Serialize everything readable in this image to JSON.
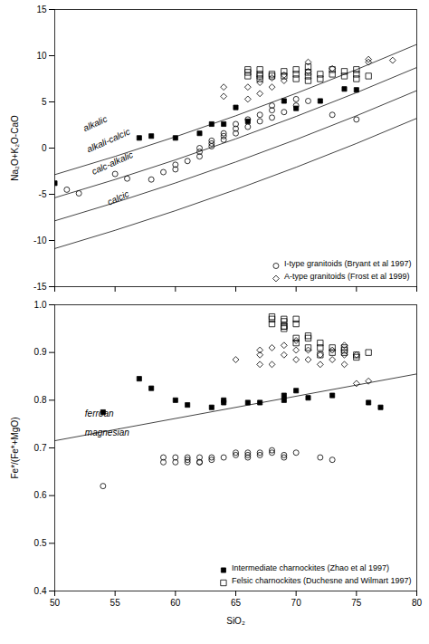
{
  "chart_data": [
    {
      "type": "scatter",
      "ylabel": "Na₂O+K₂O-CaO",
      "xlim": [
        50,
        80
      ],
      "ylim": [
        -15,
        15
      ],
      "xticks": [
        50,
        55,
        60,
        65,
        70,
        75,
        80
      ],
      "yticks": [
        -15,
        -10,
        -5,
        0,
        5,
        10,
        15
      ],
      "tick_labels": "y",
      "grid": false,
      "legend": "lower right",
      "series": [
        {
          "type": "line",
          "color": "#444444",
          "values": [
            [
              50,
              -2.875
            ],
            [
              55,
              -0.9
            ],
            [
              60,
              1.225
            ],
            [
              65,
              3.5
            ],
            [
              70,
              5.925
            ],
            [
              75,
              8.5
            ],
            [
              80,
              11.225
            ]
          ]
        },
        {
          "type": "line",
          "color": "#444444",
          "values": [
            [
              50,
              -5.375
            ],
            [
              55,
              -3.4
            ],
            [
              60,
              -1.275
            ],
            [
              65,
              1.0
            ],
            [
              70,
              3.425
            ],
            [
              75,
              6.0
            ],
            [
              80,
              8.725
            ]
          ]
        },
        {
          "type": "line",
          "color": "#444444",
          "values": [
            [
              50,
              -7.875
            ],
            [
              55,
              -5.9
            ],
            [
              60,
              -3.775
            ],
            [
              65,
              -1.5
            ],
            [
              70,
              0.925
            ],
            [
              75,
              3.5
            ],
            [
              80,
              6.225
            ]
          ]
        },
        {
          "type": "line",
          "color": "#444444",
          "values": [
            [
              50,
              -10.875
            ],
            [
              55,
              -8.9
            ],
            [
              60,
              -6.775
            ],
            [
              65,
              -4.5
            ],
            [
              70,
              -2.075
            ],
            [
              75,
              0.5
            ],
            [
              80,
              3.225
            ]
          ]
        },
        {
          "type": "scatter",
          "name": "I-type granitoids (Bryant et al 1997)",
          "marker": "circle-open",
          "color": "#000000",
          "values": [
            [
              51,
              -4.5
            ],
            [
              52,
              -4.9
            ],
            [
              55,
              -2.8
            ],
            [
              56,
              -3.3
            ],
            [
              58,
              -3.4
            ],
            [
              59,
              -2.6
            ],
            [
              60,
              -1.8
            ],
            [
              60,
              -2.3
            ],
            [
              61,
              -1.4
            ],
            [
              62,
              -0.9
            ],
            [
              62,
              -0.4
            ],
            [
              62,
              0.0
            ],
            [
              63,
              0.5
            ],
            [
              63,
              0.2
            ],
            [
              63,
              0.8
            ],
            [
              64,
              1.3
            ],
            [
              64,
              1.6
            ],
            [
              64,
              0.9
            ],
            [
              65,
              2.1
            ],
            [
              65,
              1.6
            ],
            [
              65,
              2.6
            ],
            [
              66,
              2.3
            ],
            [
              66,
              3.1
            ],
            [
              67,
              2.9
            ],
            [
              67,
              3.6
            ],
            [
              68,
              3.3
            ],
            [
              68,
              4.1
            ],
            [
              68,
              4.6
            ],
            [
              69,
              3.9
            ],
            [
              70,
              5.3
            ],
            [
              70,
              4.6
            ],
            [
              71,
              5.1
            ],
            [
              73,
              3.6
            ],
            [
              75,
              3.1
            ]
          ]
        },
        {
          "type": "scatter",
          "name": "A-type granitoids (Frost et al 1999)",
          "marker": "diamond-open",
          "color": "#000000",
          "values": [
            [
              64,
              5.6
            ],
            [
              64,
              6.6
            ],
            [
              66,
              5.3
            ],
            [
              66,
              6.6
            ],
            [
              67,
              5.9
            ],
            [
              67,
              7.1
            ],
            [
              68,
              6.6
            ],
            [
              68,
              7.6
            ],
            [
              69,
              7.3
            ],
            [
              69,
              7.9
            ],
            [
              71,
              8.3
            ],
            [
              71,
              9.3
            ],
            [
              73,
              8.6
            ],
            [
              76,
              9.3
            ],
            [
              76,
              9.6
            ],
            [
              78,
              9.5
            ]
          ]
        },
        {
          "type": "scatter",
          "marker": "square-filled",
          "color": "#000000",
          "values": [
            [
              50,
              -3.8
            ],
            [
              57,
              1.1
            ],
            [
              58,
              1.3
            ],
            [
              60,
              1.1
            ],
            [
              62,
              1.6
            ],
            [
              63,
              2.6
            ],
            [
              64,
              2.6
            ],
            [
              65,
              4.4
            ],
            [
              66,
              2.9
            ],
            [
              69,
              5.1
            ],
            [
              70,
              4.3
            ],
            [
              72,
              5.1
            ],
            [
              74,
              6.4
            ],
            [
              75,
              6.3
            ]
          ]
        },
        {
          "type": "scatter",
          "marker": "square-open",
          "color": "#000000",
          "values": [
            [
              66,
              7.8
            ],
            [
              66,
              8.2
            ],
            [
              66,
              8.5
            ],
            [
              67,
              7.5
            ],
            [
              67,
              8.0
            ],
            [
              67,
              8.5
            ],
            [
              67,
              7.8
            ],
            [
              68,
              7.8
            ],
            [
              68,
              8.0
            ],
            [
              69,
              7.8
            ],
            [
              69,
              8.3
            ],
            [
              70,
              7.5
            ],
            [
              70,
              8.0
            ],
            [
              70,
              8.5
            ],
            [
              71,
              7.3
            ],
            [
              71,
              7.8
            ],
            [
              71,
              8.2
            ],
            [
              71,
              8.8
            ],
            [
              72,
              7.5
            ],
            [
              72,
              8.0
            ],
            [
              73,
              8.0
            ],
            [
              73,
              8.5
            ],
            [
              74,
              7.8
            ],
            [
              74,
              8.3
            ],
            [
              75,
              7.5
            ],
            [
              75,
              8.0
            ],
            [
              75,
              8.5
            ],
            [
              76,
              7.8
            ]
          ]
        }
      ],
      "annotations": [
        {
          "text": "alkalic",
          "x": 52.5,
          "y": 1.8
        },
        {
          "text": "alkali-calcic",
          "x": 52.8,
          "y": -0.5
        },
        {
          "text": "calc-alkalic",
          "x": 53.2,
          "y": -2.9
        },
        {
          "text": "calcic",
          "x": 54.5,
          "y": -6.2
        }
      ]
    },
    {
      "type": "scatter",
      "xlabel": "SiO₂",
      "ylabel": "Fe*/(Fe*+MgO)",
      "xlim": [
        50,
        80
      ],
      "ylim": [
        0.4,
        1.0
      ],
      "xticks": [
        50,
        55,
        60,
        65,
        70,
        75,
        80
      ],
      "yticks": [
        0.4,
        0.5,
        0.6,
        0.7,
        0.8,
        0.9,
        {
          "value": 1.0,
          "label": "1.0"
        }
      ],
      "grid": false,
      "legend": "lower right",
      "series": [
        {
          "type": "line",
          "color": "#444444",
          "values": [
            [
              50,
              0.715
            ],
            [
              80,
              0.855
            ]
          ]
        },
        {
          "type": "scatter",
          "marker": "circle-open",
          "color": "#000000",
          "values": [
            [
              54,
              0.62
            ],
            [
              59,
              0.67
            ],
            [
              59,
              0.68
            ],
            [
              60,
              0.67
            ],
            [
              60,
              0.68
            ],
            [
              61,
              0.67
            ],
            [
              61,
              0.68
            ],
            [
              61,
              0.675
            ],
            [
              62,
              0.67
            ],
            [
              62,
              0.67
            ],
            [
              62,
              0.68
            ],
            [
              63,
              0.68
            ],
            [
              63,
              0.675
            ],
            [
              64,
              0.68
            ],
            [
              65,
              0.69
            ],
            [
              65,
              0.685
            ],
            [
              66,
              0.68
            ],
            [
              66,
              0.685
            ],
            [
              66,
              0.69
            ],
            [
              67,
              0.69
            ],
            [
              67,
              0.685
            ],
            [
              68,
              0.69
            ],
            [
              68,
              0.695
            ],
            [
              69,
              0.68
            ],
            [
              69,
              0.685
            ],
            [
              70,
              0.69
            ],
            [
              72,
              0.68
            ],
            [
              73,
              0.675
            ]
          ]
        },
        {
          "type": "scatter",
          "marker": "diamond-open",
          "color": "#000000",
          "values": [
            [
              65,
              0.885
            ],
            [
              67,
              0.875
            ],
            [
              67,
              0.895
            ],
            [
              67,
              0.905
            ],
            [
              68,
              0.875
            ],
            [
              68,
              0.91
            ],
            [
              69,
              0.895
            ],
            [
              69,
              0.915
            ],
            [
              70,
              0.885
            ],
            [
              70,
              0.905
            ],
            [
              70,
              0.925
            ],
            [
              71,
              0.885
            ],
            [
              71,
              0.905
            ],
            [
              72,
              0.875
            ],
            [
              72,
              0.895
            ],
            [
              73,
              0.885
            ],
            [
              73,
              0.905
            ],
            [
              74,
              0.875
            ],
            [
              74,
              0.895
            ],
            [
              74,
              0.915
            ],
            [
              75,
              0.835
            ],
            [
              75,
              0.895
            ],
            [
              76,
              0.84
            ]
          ]
        },
        {
          "type": "scatter",
          "name": "Intermediate charnockites (Zhao et al 1997)",
          "marker": "square-filled",
          "color": "#000000",
          "values": [
            [
              54,
              0.775
            ],
            [
              57,
              0.845
            ],
            [
              58,
              0.825
            ],
            [
              60,
              0.8
            ],
            [
              61,
              0.79
            ],
            [
              63,
              0.785
            ],
            [
              64,
              0.8
            ],
            [
              64,
              0.795
            ],
            [
              66,
              0.795
            ],
            [
              67,
              0.795
            ],
            [
              69,
              0.81
            ],
            [
              69,
              0.8
            ],
            [
              70,
              0.82
            ],
            [
              71,
              0.805
            ],
            [
              73,
              0.81
            ],
            [
              76,
              0.795
            ],
            [
              77,
              0.785
            ]
          ]
        },
        {
          "type": "scatter",
          "name": "Felsic charnockites (Duchesne and Wilmart 1997)",
          "marker": "square-open",
          "color": "#000000",
          "values": [
            [
              68,
              0.96
            ],
            [
              68,
              0.97
            ],
            [
              68,
              0.975
            ],
            [
              69,
              0.955
            ],
            [
              69,
              0.965
            ],
            [
              69,
              0.97
            ],
            [
              69,
              0.95
            ],
            [
              69,
              0.955
            ],
            [
              70,
              0.96
            ],
            [
              70,
              0.97
            ],
            [
              70,
              0.93
            ],
            [
              70,
              0.92
            ],
            [
              71,
              0.93
            ],
            [
              71,
              0.935
            ],
            [
              71,
              0.91
            ],
            [
              72,
              0.92
            ],
            [
              72,
              0.91
            ],
            [
              72,
              0.895
            ],
            [
              73,
              0.9
            ],
            [
              73,
              0.91
            ],
            [
              74,
              0.9
            ],
            [
              74,
              0.905
            ],
            [
              74,
              0.91
            ],
            [
              75,
              0.89
            ],
            [
              75,
              0.895
            ],
            [
              76,
              0.9
            ]
          ]
        }
      ],
      "annotations": [
        {
          "text": "ferroan",
          "x": 52.5,
          "y": 0.765
        },
        {
          "text": "magnesian",
          "x": 52.5,
          "y": 0.725
        }
      ]
    }
  ]
}
